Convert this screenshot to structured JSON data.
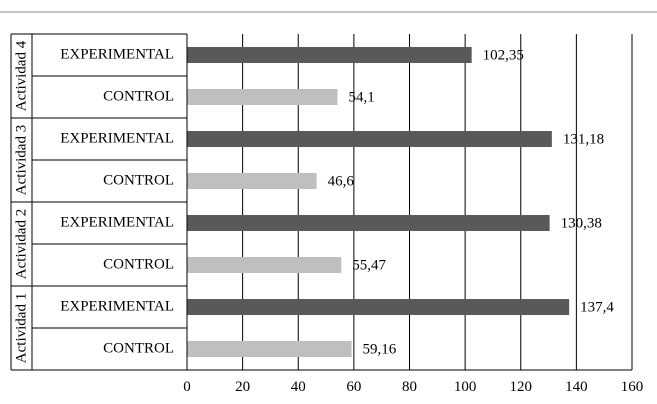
{
  "chart_data": {
    "type": "bar",
    "orientation": "horizontal",
    "title": "",
    "xlabel": "",
    "ylabel": "",
    "xlim": [
      0,
      160
    ],
    "xticks": [
      0,
      20,
      40,
      60,
      80,
      100,
      120,
      140,
      160
    ],
    "grid": "vertical",
    "legend": "none",
    "colors": {
      "EXPERIMENTAL": "#595959",
      "CONTROL": "#bfbfbf"
    },
    "groups": [
      {
        "name": "Actividad 4",
        "bars": [
          {
            "label": "EXPERIMENTAL",
            "value": 102.35,
            "text": "102,35"
          },
          {
            "label": "CONTROL",
            "value": 54.1,
            "text": "54,1"
          }
        ]
      },
      {
        "name": "Actividad 3",
        "bars": [
          {
            "label": "EXPERIMENTAL",
            "value": 131.18,
            "text": "131,18"
          },
          {
            "label": "CONTROL",
            "value": 46.6,
            "text": "46,6"
          }
        ]
      },
      {
        "name": "Actividad 2",
        "bars": [
          {
            "label": "EXPERIMENTAL",
            "value": 130.38,
            "text": "130,38"
          },
          {
            "label": "CONTROL",
            "value": 55.47,
            "text": "55,47"
          }
        ]
      },
      {
        "name": "Actividad 1",
        "bars": [
          {
            "label": "EXPERIMENTAL",
            "value": 137.4,
            "text": "137,4"
          },
          {
            "label": "CONTROL",
            "value": 59.16,
            "text": "59,16"
          }
        ]
      }
    ]
  }
}
